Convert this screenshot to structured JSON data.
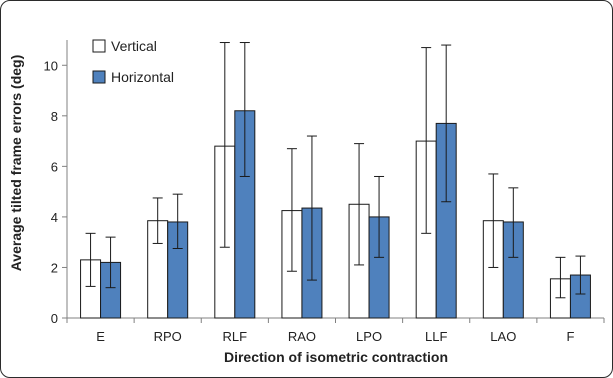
{
  "chart_data": {
    "type": "bar",
    "categories": [
      "E",
      "RPO",
      "RLF",
      "RAO",
      "LPO",
      "LLF",
      "LAO",
      "F"
    ],
    "series": [
      {
        "name": "Vertical",
        "values": [
          2.3,
          3.85,
          6.8,
          4.25,
          4.5,
          7.0,
          3.85,
          1.55
        ],
        "error_low": [
          1.25,
          2.95,
          2.8,
          1.85,
          2.1,
          3.35,
          2.0,
          0.8
        ],
        "error_high": [
          3.35,
          4.75,
          10.9,
          6.7,
          6.9,
          10.7,
          5.7,
          2.4
        ]
      },
      {
        "name": "Horizontal",
        "values": [
          2.2,
          3.8,
          8.2,
          4.35,
          4.0,
          7.7,
          3.8,
          1.7
        ],
        "error_low": [
          1.2,
          2.75,
          5.6,
          1.5,
          2.4,
          4.6,
          2.4,
          0.95
        ],
        "error_high": [
          3.2,
          4.9,
          10.9,
          7.2,
          5.6,
          10.8,
          5.15,
          2.45
        ]
      }
    ],
    "xlabel": "Direction of isometric contraction",
    "ylabel": "Average tilted frame errors (deg)",
    "ylim": [
      0,
      11
    ],
    "yticks": [
      "0",
      "2",
      "4",
      "6",
      "8",
      "10"
    ],
    "grid": false,
    "legend_position": "top-left",
    "colors": {
      "Vertical": "#ffffff",
      "Horizontal": "#4f81bd",
      "outline": "#1a1a1a"
    }
  }
}
